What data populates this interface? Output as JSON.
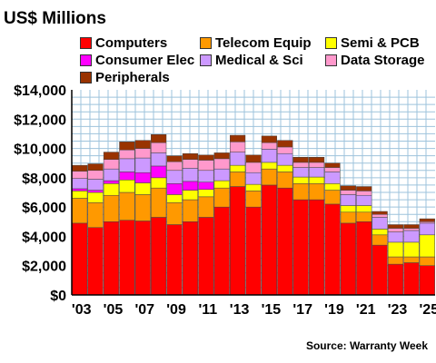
{
  "chart_data": {
    "type": "bar",
    "stacked": true,
    "title": "US$ Millions",
    "source": "Source: Warranty Week",
    "categories": [
      "2003",
      "2004",
      "2005",
      "2006",
      "2007",
      "2008",
      "2009",
      "2010",
      "2011",
      "2012",
      "2013",
      "2014",
      "2015",
      "2016",
      "2017",
      "2018",
      "2019",
      "2020",
      "2021",
      "2022",
      "2023",
      "2024",
      "2025"
    ],
    "x_tick_labels": [
      "'03",
      "'05",
      "'07",
      "'09",
      "'11",
      "'13",
      "'15",
      "'17",
      "'19",
      "'21",
      "'23",
      "'25"
    ],
    "y_tick_labels": [
      "$0",
      "$2,000",
      "$4,000",
      "$6,000",
      "$8,000",
      "$10,000",
      "$12,000",
      "$14,000"
    ],
    "ylim": [
      0,
      14000
    ],
    "grid": true,
    "legend_position": "top",
    "series": [
      {
        "name": "Computers",
        "color": "#ff0000",
        "values": [
          4900,
          4600,
          5000,
          5100,
          5050,
          5300,
          4800,
          5000,
          5300,
          6000,
          7400,
          6000,
          7500,
          7300,
          6500,
          6500,
          6200,
          4900,
          5000,
          3400,
          2100,
          2200,
          2000
        ]
      },
      {
        "name": "Telecom Equip",
        "color": "#ff9900",
        "values": [
          1700,
          1700,
          1800,
          1900,
          1800,
          2000,
          1500,
          1500,
          1400,
          1300,
          1000,
          1100,
          1100,
          1100,
          1100,
          1100,
          950,
          750,
          650,
          700,
          500,
          400,
          600
        ]
      },
      {
        "name": "Semi & PCB",
        "color": "#ffff00",
        "values": [
          500,
          700,
          800,
          850,
          800,
          700,
          550,
          650,
          500,
          500,
          450,
          450,
          450,
          450,
          450,
          450,
          450,
          450,
          450,
          400,
          1000,
          1000,
          1500
        ]
      },
      {
        "name": "Consumer Elec",
        "color": "#ff00ff",
        "values": [
          150,
          150,
          200,
          550,
          700,
          800,
          750,
          600,
          500,
          0,
          0,
          0,
          0,
          0,
          0,
          0,
          0,
          0,
          0,
          0,
          0,
          0,
          0
        ]
      },
      {
        "name": "Medical & Sci",
        "color": "#cc99ff",
        "values": [
          700,
          750,
          800,
          900,
          1000,
          900,
          900,
          900,
          800,
          800,
          900,
          800,
          900,
          800,
          650,
          650,
          800,
          750,
          700,
          800,
          700,
          800,
          800
        ]
      },
      {
        "name": "Data Storage",
        "color": "#ff99cc",
        "values": [
          500,
          600,
          650,
          600,
          650,
          700,
          600,
          600,
          700,
          700,
          700,
          700,
          450,
          450,
          350,
          350,
          300,
          300,
          300,
          200,
          250,
          150,
          100
        ]
      },
      {
        "name": "Peripherals",
        "color": "#993300",
        "values": [
          400,
          450,
          500,
          550,
          550,
          550,
          400,
          400,
          350,
          400,
          450,
          500,
          450,
          450,
          350,
          350,
          300,
          300,
          300,
          200,
          250,
          250,
          200
        ]
      }
    ]
  }
}
